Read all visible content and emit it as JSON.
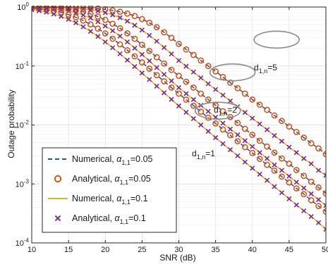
{
  "chart_data": {
    "type": "line",
    "title": "",
    "xlabel": "SNR (dB)",
    "ylabel": "Outage probability",
    "xlim": [
      10,
      50
    ],
    "ylim": [
      0.0001,
      1
    ],
    "yscale": "log",
    "grid": true,
    "legend_position": "bottom-left",
    "x_ticks": [
      10,
      15,
      20,
      25,
      30,
      35,
      40,
      45,
      50
    ],
    "x_tick_labels": [
      "10",
      "15",
      "20",
      "25",
      "30",
      "35",
      "40",
      "45",
      "50"
    ],
    "y_ticks": [
      0.0001,
      0.001,
      0.01,
      0.1,
      1
    ],
    "y_tick_labels": [
      {
        "base": "10",
        "exp": "-4"
      },
      {
        "base": "10",
        "exp": "-3"
      },
      {
        "base": "10",
        "exp": "-2"
      },
      {
        "base": "10",
        "exp": "-1"
      },
      {
        "base": "10",
        "exp": "0"
      }
    ],
    "colors": {
      "numerical_005": "#1f5f8b",
      "analytical_005": "#d95319",
      "numerical_01": "#edb120",
      "analytical_01": "#7e2f8e",
      "grid": "#e3e3e3",
      "ellipse": "#8c8c8c"
    },
    "x": [
      10,
      11,
      12,
      13,
      14,
      15,
      16,
      17,
      18,
      19,
      20,
      21,
      22,
      23,
      24,
      25,
      26,
      27,
      28,
      29,
      30,
      31,
      32,
      33,
      34,
      35,
      36,
      37,
      38,
      39,
      40,
      41,
      42,
      43,
      44,
      45,
      46,
      47,
      48,
      49,
      50
    ],
    "series": [
      {
        "legend_key": "Numerical, α=0.05",
        "group": "d1n5",
        "style": "dashed-line",
        "color": "#1f5f8b",
        "values": [
          0.998,
          0.997,
          0.996,
          0.994,
          0.991,
          0.987,
          0.981,
          0.972,
          0.959,
          0.94,
          0.914,
          0.878,
          0.832,
          0.774,
          0.704,
          0.625,
          0.54,
          0.455,
          0.373,
          0.3,
          0.237,
          0.191,
          0.154,
          0.124,
          0.1,
          0.081,
          0.065,
          0.052,
          0.042,
          0.034,
          0.027,
          0.022,
          0.018,
          0.0145,
          0.0117,
          0.0094,
          0.0076,
          0.0061,
          0.0049,
          0.004,
          0.0032
        ]
      },
      {
        "legend_key": "Analytical, α=0.05",
        "group": "d1n5",
        "style": "circle-markers",
        "color": "#d95319",
        "values": [
          0.998,
          0.997,
          0.996,
          0.994,
          0.991,
          0.987,
          0.981,
          0.972,
          0.959,
          0.94,
          0.914,
          0.878,
          0.832,
          0.774,
          0.704,
          0.625,
          0.54,
          0.455,
          0.373,
          0.3,
          0.237,
          0.191,
          0.154,
          0.124,
          0.1,
          0.081,
          0.065,
          0.052,
          0.042,
          0.034,
          0.027,
          0.022,
          0.018,
          0.0145,
          0.0117,
          0.0094,
          0.0076,
          0.0061,
          0.0049,
          0.004,
          0.0032
        ]
      },
      {
        "legend_key": "Numerical, α=0.1",
        "group": "d1n5",
        "style": "solid-line",
        "color": "#edb120",
        "values": [
          0.996,
          0.994,
          0.991,
          0.986,
          0.979,
          0.968,
          0.952,
          0.93,
          0.899,
          0.857,
          0.803,
          0.737,
          0.66,
          0.577,
          0.491,
          0.407,
          0.33,
          0.263,
          0.206,
          0.16,
          0.124,
          0.099,
          0.079,
          0.063,
          0.05,
          0.04,
          0.032,
          0.0255,
          0.0204,
          0.0163,
          0.013,
          0.0104,
          0.0083,
          0.0066,
          0.0053,
          0.0042,
          0.0034,
          0.0027,
          0.0022,
          0.0017,
          0.0014
        ]
      },
      {
        "legend_key": "Analytical, α=0.1",
        "group": "d1n5",
        "style": "x-markers",
        "color": "#7e2f8e",
        "values": [
          0.996,
          0.994,
          0.991,
          0.986,
          0.979,
          0.968,
          0.952,
          0.93,
          0.899,
          0.857,
          0.803,
          0.737,
          0.66,
          0.577,
          0.491,
          0.407,
          0.33,
          0.263,
          0.206,
          0.16,
          0.124,
          0.099,
          0.079,
          0.063,
          0.05,
          0.04,
          0.032,
          0.0255,
          0.0204,
          0.0163,
          0.013,
          0.0104,
          0.0083,
          0.0066,
          0.0053,
          0.0042,
          0.0034,
          0.0027,
          0.0022,
          0.0017,
          0.0014
        ]
      },
      {
        "legend_key": "Numerical, α=0.05",
        "group": "d1n2",
        "style": "dashed-line",
        "color": "#1f5f8b",
        "values": [
          0.99,
          0.985,
          0.977,
          0.964,
          0.945,
          0.918,
          0.88,
          0.83,
          0.766,
          0.69,
          0.606,
          0.52,
          0.436,
          0.358,
          0.289,
          0.229,
          0.18,
          0.141,
          0.11,
          0.086,
          0.068,
          0.054,
          0.043,
          0.034,
          0.027,
          0.0215,
          0.0171,
          0.0136,
          0.0108,
          0.0086,
          0.0068,
          0.0054,
          0.0043,
          0.0034,
          0.0027,
          0.0022,
          0.00172,
          0.00137,
          0.00109,
          0.00087,
          0.00069
        ]
      },
      {
        "legend_key": "Analytical, α=0.05",
        "group": "d1n2",
        "style": "circle-markers",
        "color": "#d95319",
        "values": [
          0.99,
          0.985,
          0.977,
          0.964,
          0.945,
          0.918,
          0.88,
          0.83,
          0.766,
          0.69,
          0.606,
          0.52,
          0.436,
          0.358,
          0.289,
          0.229,
          0.18,
          0.141,
          0.11,
          0.086,
          0.068,
          0.054,
          0.043,
          0.034,
          0.027,
          0.0215,
          0.0171,
          0.0136,
          0.0108,
          0.0086,
          0.0068,
          0.0054,
          0.0043,
          0.0034,
          0.0027,
          0.0022,
          0.00172,
          0.00137,
          0.00109,
          0.00087,
          0.00069
        ]
      },
      {
        "legend_key": "Numerical, α=0.1",
        "group": "d1n2",
        "style": "solid-line",
        "color": "#edb120",
        "values": [
          0.98,
          0.97,
          0.955,
          0.932,
          0.9,
          0.857,
          0.8,
          0.73,
          0.65,
          0.565,
          0.478,
          0.396,
          0.321,
          0.256,
          0.201,
          0.157,
          0.122,
          0.094,
          0.072,
          0.056,
          0.043,
          0.034,
          0.027,
          0.0215,
          0.017,
          0.0135,
          0.0107,
          0.0085,
          0.0068,
          0.0054,
          0.0043,
          0.0034,
          0.0027,
          0.0021,
          0.0017,
          0.00135,
          0.00107,
          0.00085,
          0.00068,
          0.00054,
          0.00043
        ]
      },
      {
        "legend_key": "Analytical, α=0.1",
        "group": "d1n2",
        "style": "x-markers",
        "color": "#7e2f8e",
        "values": [
          0.98,
          0.97,
          0.955,
          0.932,
          0.9,
          0.857,
          0.8,
          0.73,
          0.65,
          0.565,
          0.478,
          0.396,
          0.321,
          0.256,
          0.201,
          0.157,
          0.122,
          0.094,
          0.072,
          0.056,
          0.043,
          0.034,
          0.027,
          0.0215,
          0.017,
          0.0135,
          0.0107,
          0.0085,
          0.0068,
          0.0054,
          0.0043,
          0.0034,
          0.0027,
          0.0021,
          0.0017,
          0.00135,
          0.00107,
          0.00085,
          0.00068,
          0.00054,
          0.00043
        ]
      },
      {
        "legend_key": "Numerical, α=0.05",
        "group": "d1n1",
        "style": "dashed-line",
        "color": "#1f5f8b",
        "values": [
          0.95,
          0.93,
          0.9,
          0.86,
          0.81,
          0.745,
          0.67,
          0.59,
          0.508,
          0.43,
          0.357,
          0.29,
          0.233,
          0.185,
          0.146,
          0.115,
          0.09,
          0.07,
          0.055,
          0.043,
          0.034,
          0.0268,
          0.0212,
          0.0168,
          0.0133,
          0.0106,
          0.0084,
          0.0067,
          0.0053,
          0.0042,
          0.00335,
          0.00266,
          0.00211,
          0.00168,
          0.00133,
          0.00106,
          0.00084,
          0.00067,
          0.00053,
          0.00042,
          0.00034
        ]
      },
      {
        "legend_key": "Analytical, α=0.05",
        "group": "d1n1",
        "style": "circle-markers",
        "color": "#d95319",
        "values": [
          0.95,
          0.93,
          0.9,
          0.86,
          0.81,
          0.745,
          0.67,
          0.59,
          0.508,
          0.43,
          0.357,
          0.29,
          0.233,
          0.185,
          0.146,
          0.115,
          0.09,
          0.07,
          0.055,
          0.043,
          0.034,
          0.0268,
          0.0212,
          0.0168,
          0.0133,
          0.0106,
          0.0084,
          0.0067,
          0.0053,
          0.0042,
          0.00335,
          0.00266,
          0.00211,
          0.00168,
          0.00133,
          0.00106,
          0.00084,
          0.00067,
          0.00053,
          0.00042,
          0.00034
        ]
      },
      {
        "legend_key": "Numerical, α=0.1",
        "group": "d1n1",
        "style": "solid-line",
        "color": "#edb120",
        "values": [
          0.9,
          0.865,
          0.82,
          0.763,
          0.695,
          0.62,
          0.541,
          0.462,
          0.386,
          0.317,
          0.256,
          0.204,
          0.161,
          0.126,
          0.098,
          0.076,
          0.059,
          0.0455,
          0.0352,
          0.0272,
          0.021,
          0.0164,
          0.0128,
          0.01,
          0.0078,
          0.0061,
          0.0048,
          0.0038,
          0.003,
          0.00235,
          0.00185,
          0.00146,
          0.00115,
          0.0009,
          0.00071,
          0.00056,
          0.00044,
          0.00035,
          0.00028,
          0.00022,
          0.00017
        ]
      },
      {
        "legend_key": "Analytical, α=0.1",
        "group": "d1n1",
        "style": "x-markers",
        "color": "#7e2f8e",
        "values": [
          0.9,
          0.865,
          0.82,
          0.763,
          0.695,
          0.62,
          0.541,
          0.462,
          0.386,
          0.317,
          0.256,
          0.204,
          0.161,
          0.126,
          0.098,
          0.076,
          0.059,
          0.0455,
          0.0352,
          0.0272,
          0.021,
          0.0164,
          0.0128,
          0.01,
          0.0078,
          0.0061,
          0.0048,
          0.0038,
          0.003,
          0.00235,
          0.00185,
          0.00146,
          0.00115,
          0.0009,
          0.00071,
          0.00056,
          0.00044,
          0.00035,
          0.00028,
          0.00022,
          0.00017
        ]
      }
    ],
    "legend": [
      {
        "key": "Numerical, α=0.05",
        "prefix": "Numerical, ",
        "symbol": "α",
        "sub": "1,1",
        "suffix": "=0.05",
        "style": "dashed-line",
        "color": "#1f5f8b"
      },
      {
        "key": "Analytical, α=0.05",
        "prefix": "Analytical, ",
        "symbol": "α",
        "sub": "1,1",
        "suffix": "=0.05",
        "style": "circle-markers",
        "color": "#d95319"
      },
      {
        "key": "Numerical, α=0.1",
        "prefix": "Numerical, ",
        "symbol": "α",
        "sub": "1,1",
        "suffix": "=0.1",
        "style": "solid-line",
        "color": "#edb120"
      },
      {
        "key": "Analytical, α=0.1",
        "prefix": "Analytical, ",
        "symbol": "α",
        "sub": "1,1",
        "suffix": "=0.1",
        "style": "x-markers",
        "color": "#7e2f8e"
      }
    ],
    "annotations": [
      {
        "base": "d",
        "sub": "1,n",
        "suffix": "=5",
        "ellipse_center": [
          43.3,
          0.28
        ]
      },
      {
        "base": "d",
        "sub": "1,n",
        "suffix": "=2",
        "ellipse_center": [
          37.3,
          0.078
        ]
      },
      {
        "base": "d",
        "sub": "1,n",
        "suffix": "=1",
        "ellipse_center": [
          35.3,
          0.0175
        ]
      }
    ]
  }
}
